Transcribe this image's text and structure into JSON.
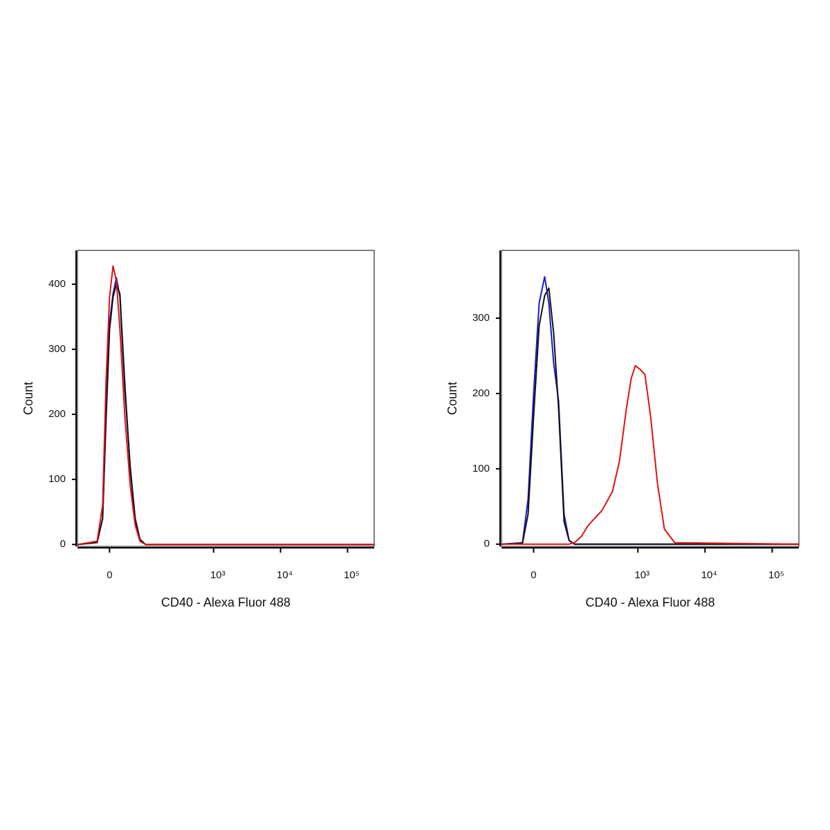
{
  "chart_data": [
    {
      "type": "line",
      "xscale": "biexponential",
      "x_label": "CD40 - Alexa Fluor 488",
      "y_label": "Count",
      "xlim": [
        -75,
        250000
      ],
      "ylim": [
        -3,
        452
      ],
      "xticks": [
        0,
        {
          "value": 1000,
          "label": "10³"
        },
        {
          "value": 10000,
          "label": "10⁴"
        },
        {
          "value": 100000,
          "label": "10⁵"
        }
      ],
      "yticks": [
        0,
        100,
        200,
        300,
        400
      ],
      "x": [
        -74,
        -24.6,
        -13.4,
        -6.7,
        0,
        6.7,
        13.4,
        20.4,
        30.6,
        43.3,
        55.9,
        69.7,
        88.7,
        250000
      ],
      "series": [
        {
          "color": "#1a1acc",
          "values": [
            0,
            3,
            40,
            200,
            340,
            385,
            410,
            380,
            240,
            120,
            40,
            8,
            0,
            0
          ]
        },
        {
          "color": "#111111",
          "values": [
            0,
            3,
            40,
            190,
            330,
            380,
            400,
            385,
            250,
            115,
            40,
            8,
            0,
            0
          ]
        },
        {
          "color": "#e01010",
          "values": [
            0,
            5,
            60,
            250,
            380,
            428,
            405,
            330,
            200,
            90,
            30,
            5,
            0,
            0
          ]
        }
      ]
    },
    {
      "type": "line",
      "xscale": "biexponential",
      "x_label": "CD40 - Alexa Fluor 488",
      "y_label": "Count",
      "xlim": [
        -75,
        250000
      ],
      "ylim": [
        -3,
        390
      ],
      "xticks": [
        0,
        {
          "value": 1000,
          "label": "10³"
        },
        {
          "value": 10000,
          "label": "10⁴"
        },
        {
          "value": 100000,
          "label": "10⁵"
        }
      ],
      "yticks": [
        0,
        100,
        200,
        300
      ],
      "x": [
        -74,
        -21.8,
        -10.7,
        0,
        10.7,
        21.8,
        30.6,
        41.7,
        54,
        69.7,
        86.4,
        106.7,
        138,
        178,
        291,
        417,
        530,
        673,
        795,
        918,
        1081,
        1277,
        1545,
        1960,
        2486,
        3550,
        250000
      ],
      "series": [
        {
          "color": "#1a1acc",
          "values": [
            0,
            2,
            60,
            200,
            320,
            355,
            320,
            240,
            190,
            40,
            5,
            0,
            0,
            0,
            0,
            0,
            0,
            0,
            0,
            0,
            0,
            0,
            0,
            0,
            0,
            0,
            0
          ]
        },
        {
          "color": "#111111",
          "values": [
            0,
            1,
            40,
            170,
            290,
            330,
            340,
            280,
            180,
            30,
            5,
            0,
            0,
            0,
            0,
            0,
            0,
            0,
            0,
            0,
            0,
            0,
            0,
            0,
            0,
            0,
            0
          ]
        },
        {
          "color": "#e01010",
          "values": [
            0,
            0,
            0,
            0,
            0,
            0,
            0,
            0,
            0,
            0,
            0,
            2,
            10,
            25,
            45,
            70,
            110,
            180,
            220,
            237,
            232,
            225,
            170,
            80,
            20,
            2,
            0
          ]
        }
      ]
    }
  ]
}
